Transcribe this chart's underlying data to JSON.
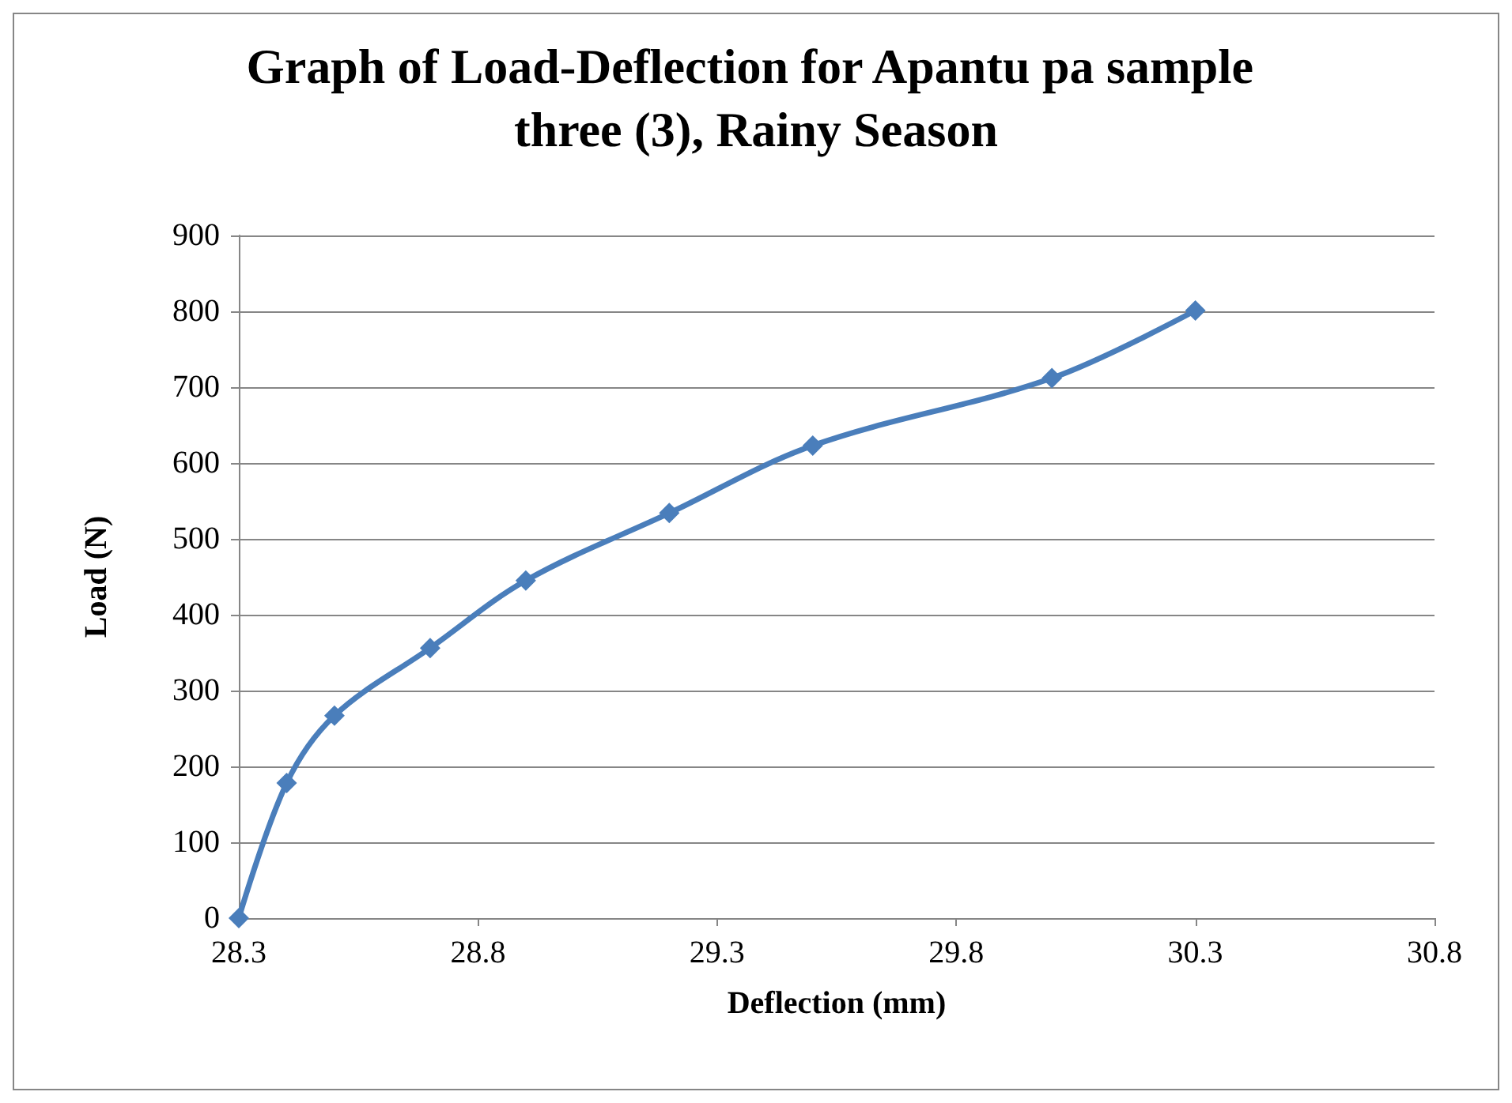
{
  "chart_data": {
    "type": "line",
    "title": "Graph of Load-Deflection for Apantu pa sample three (3), Rainy Season",
    "xlabel": "Deflection (mm)",
    "ylabel": "Load (N)",
    "x": [
      28.3,
      28.4,
      28.5,
      28.7,
      28.9,
      29.2,
      29.5,
      30.0,
      30.3
    ],
    "series": [
      {
        "color": "#4a7ebb",
        "values": [
          0,
          178,
          267,
          356,
          445,
          534,
          623,
          712,
          801
        ]
      }
    ],
    "xlim": [
      28.3,
      30.8
    ],
    "xticks": [
      28.3,
      28.8,
      29.3,
      29.8,
      30.3,
      30.8
    ],
    "ylim": [
      0,
      900
    ],
    "yticks": [
      0,
      100,
      200,
      300,
      400,
      500,
      600,
      700,
      800,
      900
    ],
    "grid": "y",
    "marker": "diamond",
    "line_style": "solid"
  }
}
